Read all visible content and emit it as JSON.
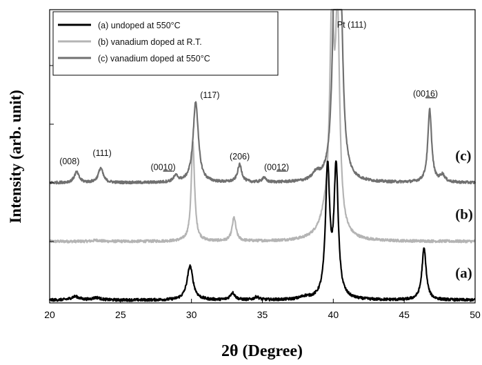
{
  "chart_data": {
    "type": "line",
    "xlabel": "2θ (Degree)",
    "ylabel": "Intensity (arb. unit)",
    "xlim": [
      20,
      50
    ],
    "xticks": [
      "20",
      "25",
      "30",
      "35",
      "40",
      "45",
      "50"
    ],
    "legend_position": "top-left",
    "grid": false,
    "series": [
      {
        "name": "(a) undoped at 550°C",
        "label": "(a)",
        "color": "#000000",
        "baseline": 0,
        "peaks": [
          [
            21.8,
            0.06,
            0.35
          ],
          [
            23.3,
            0.04,
            0.35
          ],
          [
            29.9,
            0.58,
            0.25
          ],
          [
            32.9,
            0.12,
            0.2
          ],
          [
            34.6,
            0.05,
            0.2
          ],
          [
            38.0,
            0.04,
            0.4
          ],
          [
            39.6,
            2.2,
            0.18
          ],
          [
            40.2,
            2.2,
            0.18
          ],
          [
            46.4,
            0.88,
            0.18
          ]
        ]
      },
      {
        "name": "(b) vanadium doped at R.T.",
        "label": "(b)",
        "color": "#b4b4b4",
        "baseline": 1,
        "peaks": [
          [
            23.3,
            0.02,
            0.3
          ],
          [
            30.1,
            1.7,
            0.14
          ],
          [
            33.0,
            0.4,
            0.16
          ],
          [
            39.5,
            0.3,
            0.6
          ],
          [
            39.9,
            3.5,
            0.18
          ],
          [
            40.3,
            3.5,
            0.18
          ]
        ]
      },
      {
        "name": "(c) vanadium doped at 550°C",
        "label": "(c)",
        "color": "#707070",
        "baseline": 2,
        "peaks": [
          [
            21.9,
            0.18,
            0.2
          ],
          [
            23.6,
            0.25,
            0.2
          ],
          [
            28.9,
            0.1,
            0.2
          ],
          [
            30.3,
            1.38,
            0.22
          ],
          [
            33.4,
            0.3,
            0.18
          ],
          [
            35.1,
            0.08,
            0.15
          ],
          [
            38.8,
            0.12,
            0.3
          ],
          [
            40.1,
            3.2,
            0.2
          ],
          [
            40.5,
            3.2,
            0.2
          ],
          [
            46.8,
            1.24,
            0.16
          ],
          [
            47.7,
            0.12,
            0.2
          ]
        ]
      }
    ],
    "annotations": [
      {
        "text": "(008)",
        "x": 21.4,
        "y": 2.32
      },
      {
        "text": "(111)",
        "x": 23.7,
        "y": 2.46
      },
      {
        "text": "(00",
        "underline": "10",
        "close": ")",
        "x": 28.0,
        "y": 2.22
      },
      {
        "text": "(117)",
        "x": 31.3,
        "y": 3.45
      },
      {
        "text": "(206)",
        "x": 33.4,
        "y": 2.4
      },
      {
        "text": "(00",
        "underline": "12",
        "close": ")",
        "x": 36.0,
        "y": 2.22
      },
      {
        "text": "Pt (111)",
        "x": 41.3,
        "y": 4.65
      },
      {
        "text": "(00",
        "underline": "16",
        "close": ")",
        "x": 46.5,
        "y": 3.47
      }
    ]
  }
}
